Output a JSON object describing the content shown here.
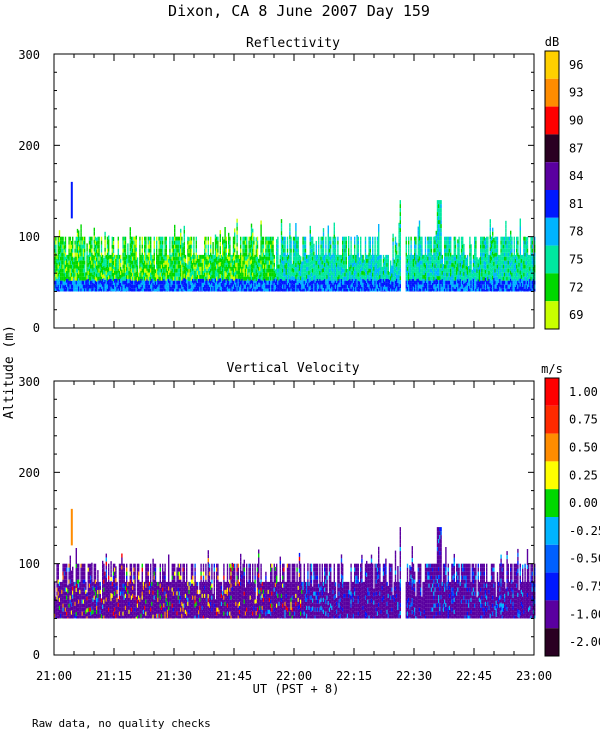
{
  "figure": {
    "title": "Dixon, CA  8 June 2007  Day 159",
    "ylabel": "Altitude (m)",
    "xlabel": "UT  (PST + 8)",
    "footnote": "Raw data, no quality checks"
  },
  "chart_data": [
    {
      "type": "heatmap",
      "title": "Reflectivity",
      "colorbar_unit": "dB",
      "colorbar_labels": [
        "96",
        "93",
        "90",
        "87",
        "84",
        "81",
        "78",
        "75",
        "72",
        "69"
      ],
      "colorbar_colors": [
        "#ffd000",
        "#ff8c00",
        "#ff0000",
        "#2a0022",
        "#5a00a0",
        "#0018ff",
        "#00b4ff",
        "#00e8a0",
        "#00d800",
        "#c8ff00"
      ],
      "ylim": [
        0,
        300
      ],
      "yticks": [
        "0",
        "100",
        "200",
        "300"
      ],
      "xlim_minutes": [
        0,
        120
      ],
      "xticks": [
        "21:00",
        "21:15",
        "21:30",
        "21:45",
        "22:00",
        "22:15",
        "22:30",
        "22:45",
        "23:00"
      ],
      "data_range_m": [
        40,
        100
      ],
      "notes": "Echo mostly between 40 and 100 m altitude, spikes to ~120-140 m, brief echo near 150 m at about 21:04"
    },
    {
      "type": "heatmap",
      "title": "Vertical Velocity",
      "colorbar_unit": "m/s",
      "colorbar_labels": [
        "1.00",
        "0.75",
        "0.50",
        "0.25",
        "0.00",
        "-0.25",
        "-0.50",
        "-0.75",
        "-1.00",
        "-2.00"
      ],
      "colorbar_colors": [
        "#ff0000",
        "#ff2a00",
        "#ff8c00",
        "#ffff00",
        "#00d800",
        "#00b4ff",
        "#0060ff",
        "#0018ff",
        "#5a00a0",
        "#2a0022"
      ],
      "ylim": [
        0,
        300
      ],
      "yticks": [
        "0",
        "100",
        "200",
        "300"
      ],
      "xlim_minutes": [
        0,
        120
      ],
      "xticks": [
        "21:00",
        "21:15",
        "21:30",
        "21:45",
        "22:00",
        "22:15",
        "22:30",
        "22:45",
        "23:00"
      ],
      "data_range_m": [
        40,
        100
      ],
      "notes": "Mostly -1.00 m/s (purple) with scattered positive velocities (red/yellow) before 22:10"
    }
  ]
}
